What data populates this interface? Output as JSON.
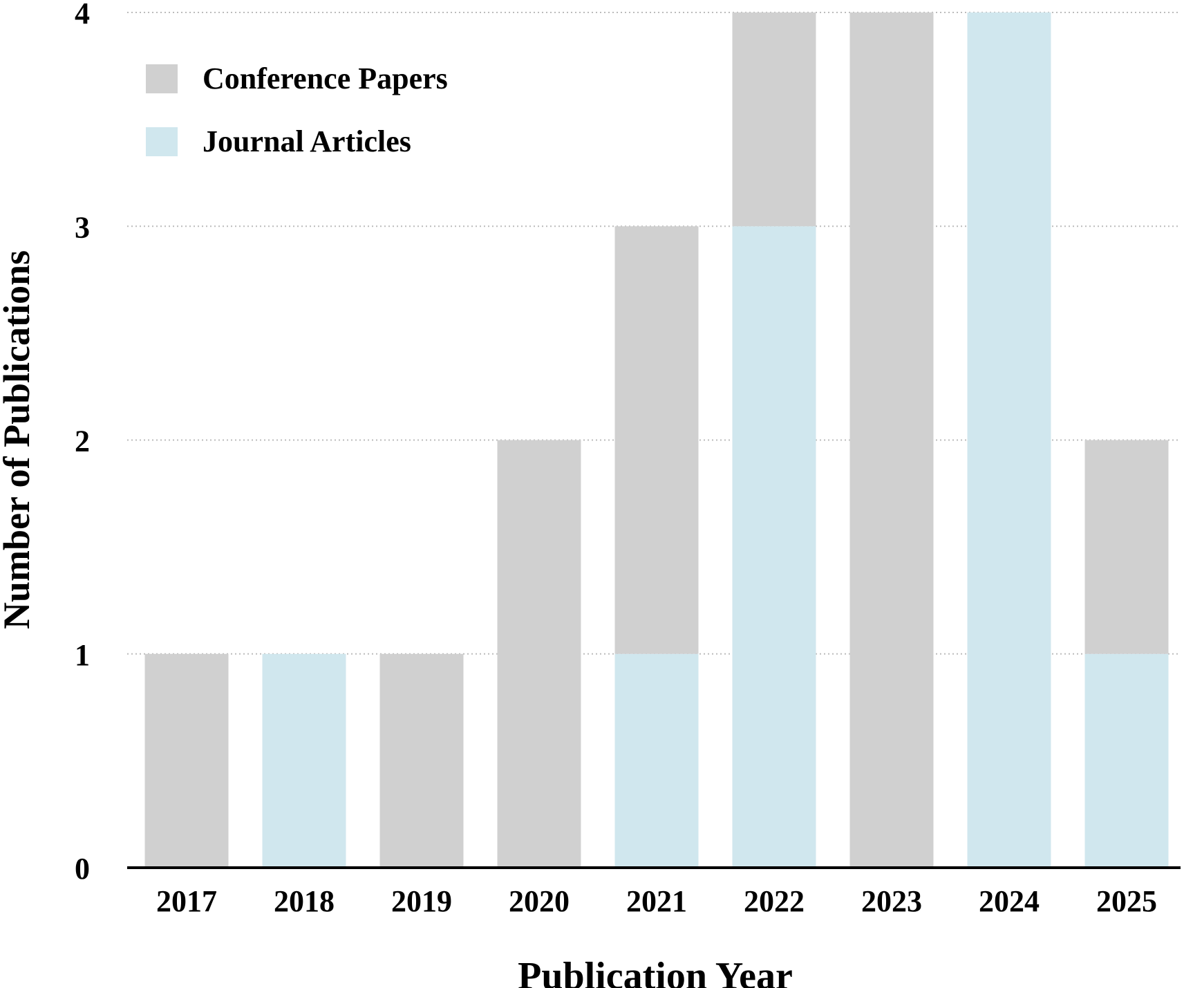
{
  "chart_data": {
    "type": "bar",
    "stacked": true,
    "title": "",
    "xlabel": "Publication Year",
    "ylabel": "Number of Publications",
    "categories": [
      "2017",
      "2018",
      "2019",
      "2020",
      "2021",
      "2022",
      "2023",
      "2024",
      "2025"
    ],
    "series": [
      {
        "name": "Journal Articles",
        "color": "#d0e7ee",
        "values": [
          0,
          1,
          0,
          0,
          1,
          3,
          0,
          4,
          1
        ]
      },
      {
        "name": "Conference Papers",
        "color": "#d0d0d0",
        "values": [
          1,
          0,
          1,
          2,
          2,
          1,
          4,
          0,
          1
        ]
      }
    ],
    "legend_order": [
      "Conference Papers",
      "Journal Articles"
    ],
    "ylim": [
      0,
      4
    ],
    "yticks": [
      "0",
      "1",
      "2",
      "3",
      "4"
    ],
    "grid": true,
    "legend_position": "top-left"
  }
}
